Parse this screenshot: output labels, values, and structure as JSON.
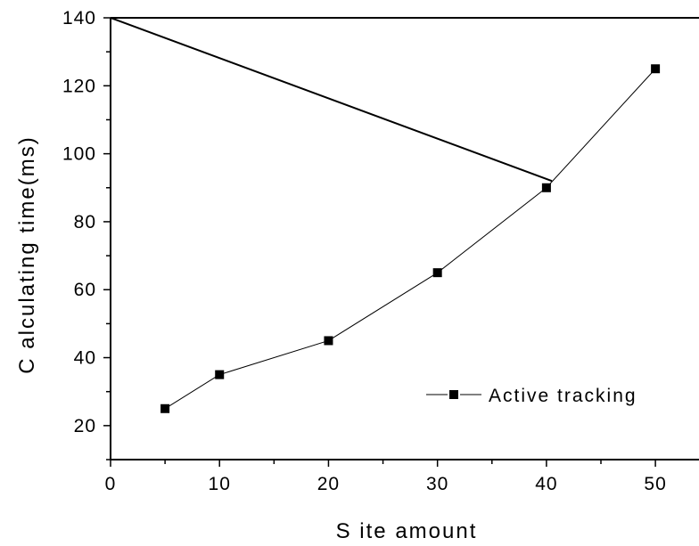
{
  "chart_data": {
    "type": "line",
    "title": "",
    "xlabel": "S ite amount",
    "ylabel": "C alculating time(ms)",
    "xlim": [
      0,
      54
    ],
    "ylim": [
      10,
      140
    ],
    "x_ticks": [
      0,
      10,
      20,
      30,
      40,
      50
    ],
    "y_ticks": [
      20,
      40,
      60,
      80,
      100,
      120,
      140
    ],
    "grid": false,
    "legend": {
      "position": "bottom-right",
      "entries": [
        "Active tracking"
      ]
    },
    "series": [
      {
        "name": "Active tracking",
        "marker": "square",
        "x": [
          5,
          10,
          20,
          30,
          40,
          50
        ],
        "y": [
          25,
          35,
          45,
          65,
          90,
          125
        ]
      }
    ],
    "annotation_lines": [
      {
        "x": [
          0,
          40.5
        ],
        "y": [
          140,
          92
        ]
      }
    ],
    "colors": {
      "line": "#000000",
      "marker": "#000000"
    }
  }
}
